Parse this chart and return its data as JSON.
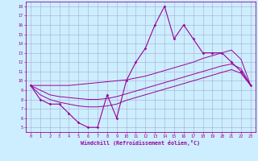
{
  "xlabel": "Windchill (Refroidissement éolien,°C)",
  "x_hours": [
    0,
    1,
    2,
    3,
    4,
    5,
    6,
    7,
    8,
    9,
    10,
    11,
    12,
    13,
    14,
    15,
    16,
    17,
    18,
    19,
    20,
    21,
    22,
    23
  ],
  "windchill_curve": [
    9.5,
    8.0,
    7.5,
    7.5,
    6.5,
    5.5,
    5.0,
    5.0,
    8.5,
    6.0,
    10.0,
    12.0,
    13.5,
    16.0,
    18.0,
    14.5,
    16.0,
    14.5,
    13.0,
    13.0,
    13.0,
    12.0,
    11.0,
    9.5
  ],
  "line_high": [
    9.5,
    9.5,
    9.5,
    9.5,
    9.5,
    9.6,
    9.7,
    9.8,
    9.9,
    10.0,
    10.1,
    10.3,
    10.5,
    10.8,
    11.1,
    11.4,
    11.7,
    12.0,
    12.4,
    12.7,
    13.0,
    13.3,
    12.3,
    9.5
  ],
  "line_mid": [
    9.5,
    9.0,
    8.5,
    8.3,
    8.2,
    8.1,
    8.0,
    8.0,
    8.1,
    8.3,
    8.6,
    8.9,
    9.2,
    9.5,
    9.8,
    10.1,
    10.4,
    10.7,
    11.0,
    11.3,
    11.6,
    11.8,
    11.3,
    9.5
  ],
  "line_low": [
    9.5,
    8.5,
    8.0,
    7.7,
    7.5,
    7.3,
    7.2,
    7.2,
    7.3,
    7.5,
    7.9,
    8.2,
    8.5,
    8.8,
    9.1,
    9.4,
    9.7,
    10.0,
    10.3,
    10.6,
    10.9,
    11.2,
    10.8,
    9.5
  ],
  "color": "#990099",
  "bg_color": "#cceeff",
  "grid_color": "#aaaacc",
  "ylim": [
    4.5,
    18.5
  ],
  "xlim": [
    -0.5,
    23.5
  ],
  "yticks": [
    5,
    6,
    7,
    8,
    9,
    10,
    11,
    12,
    13,
    14,
    15,
    16,
    17,
    18
  ],
  "xticks": [
    0,
    1,
    2,
    3,
    4,
    5,
    6,
    7,
    8,
    9,
    10,
    11,
    12,
    13,
    14,
    15,
    16,
    17,
    18,
    19,
    20,
    21,
    22,
    23
  ]
}
